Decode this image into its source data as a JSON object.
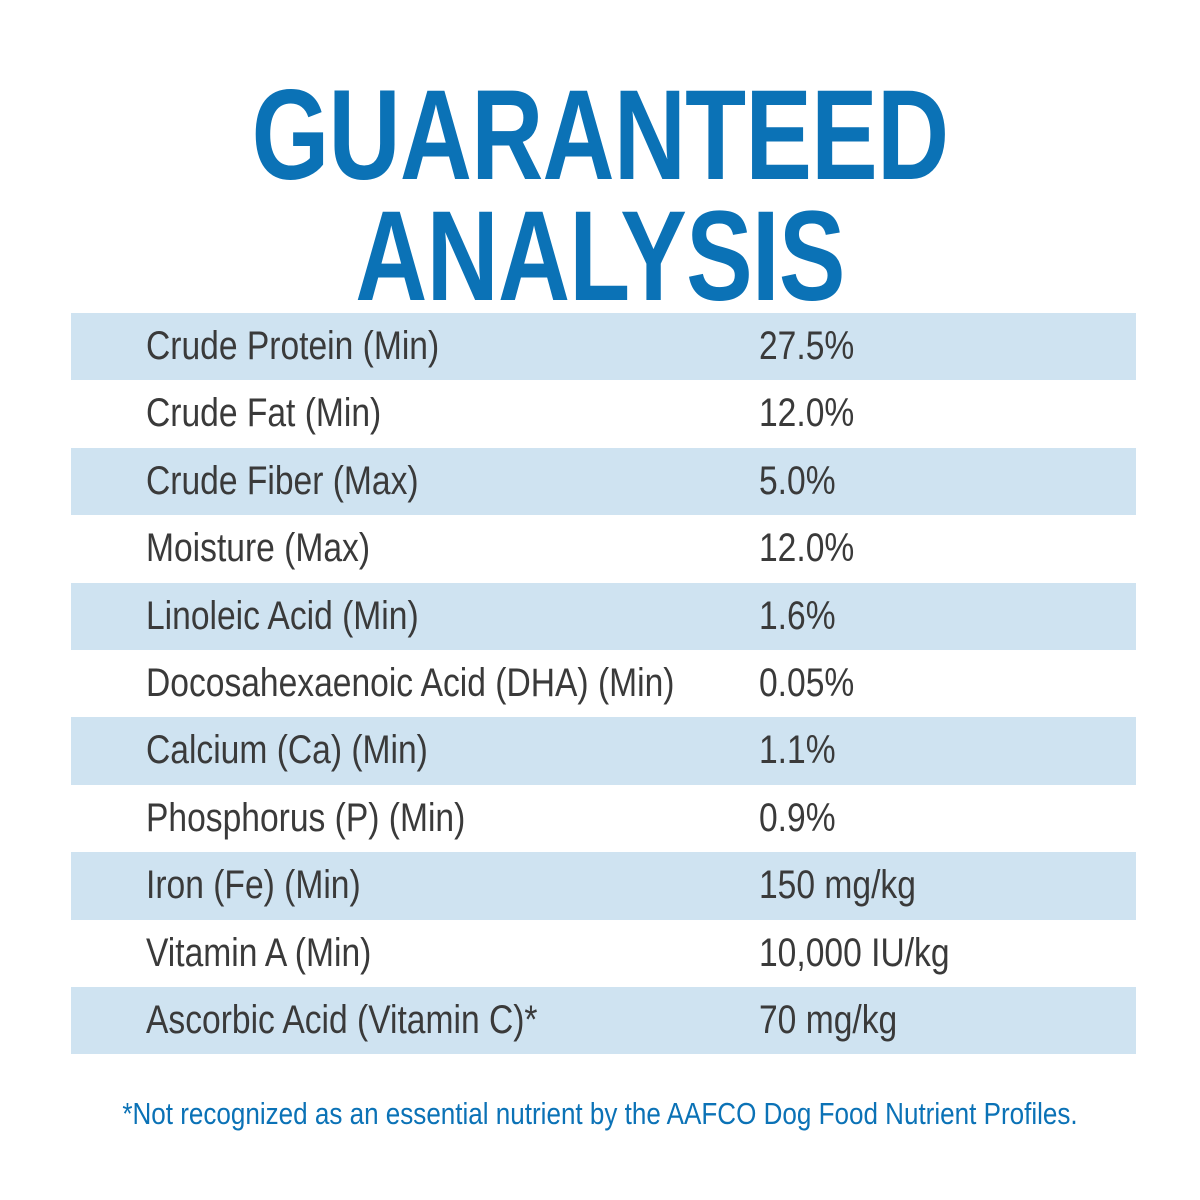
{
  "title": {
    "line1": "GUARANTEED",
    "line2": "ANALYSIS",
    "color": "#0b72b6"
  },
  "table": {
    "row_shade_color": "#cfe3f1",
    "rows": [
      {
        "name": "Crude Protein (Min)",
        "value": "27.5%"
      },
      {
        "name": "Crude Fat (Min)",
        "value": "12.0%"
      },
      {
        "name": "Crude Fiber (Max)",
        "value": "5.0%"
      },
      {
        "name": "Moisture (Max)",
        "value": "12.0%"
      },
      {
        "name": "Linoleic Acid (Min)",
        "value": "1.6%"
      },
      {
        "name": "Docosahexaenoic Acid (DHA) (Min)",
        "value": "0.05%"
      },
      {
        "name": "Calcium (Ca) (Min)",
        "value": "1.1%"
      },
      {
        "name": "Phosphorus (P) (Min)",
        "value": "0.9%"
      },
      {
        "name": "Iron (Fe) (Min)",
        "value": "150 mg/kg"
      },
      {
        "name": "Vitamin A (Min)",
        "value": "10,000 IU/kg"
      },
      {
        "name": "Ascorbic Acid (Vitamin C)*",
        "value": "70 mg/kg"
      }
    ]
  },
  "footnote": "*Not recognized as an essential nutrient by the AAFCO Dog Food Nutrient Profiles."
}
